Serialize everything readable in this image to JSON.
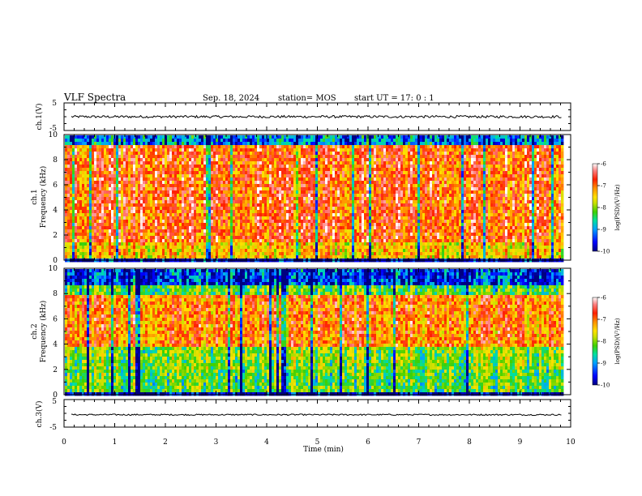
{
  "header": {
    "title": "VLF Spectra",
    "date": "Sep. 18, 2024",
    "station": "station= MOS",
    "start_ut": "start  UT =   17: 0  : 1"
  },
  "chart_data": [
    {
      "id": "ch1-waveform",
      "type": "line",
      "ylabel": "ch.1(V)",
      "ylim": [
        -5,
        5
      ],
      "y_ticks": [
        "5",
        "-5"
      ],
      "signal_level": 0,
      "xlim": [
        0,
        10
      ],
      "data_end_min": 9.82
    },
    {
      "id": "ch1-spectrogram",
      "type": "heatmap",
      "ylabel_channel": "ch.1",
      "ylabel": "Frequency (kHz)",
      "ylim": [
        0,
        10
      ],
      "y_ticks": [
        "0",
        "2",
        "4",
        "6",
        "8",
        "10"
      ],
      "xlim": [
        0,
        10
      ],
      "data_end_min": 9.82,
      "colorbar": {
        "label": "log(PSD)(V²/Hz)",
        "range": [
          -10,
          -6
        ],
        "ticks": [
          "-6",
          "-7",
          "-8",
          "-9",
          "-10"
        ]
      }
    },
    {
      "id": "ch2-spectrogram",
      "type": "heatmap",
      "ylabel_channel": "ch.2",
      "ylabel": "Frequency (kHz)",
      "ylim": [
        0,
        10
      ],
      "y_ticks": [
        "0",
        "2",
        "4",
        "6",
        "8",
        "10"
      ],
      "xlim": [
        0,
        10
      ],
      "data_end_min": 9.82,
      "colorbar": {
        "label": "log(PSD)(V²/Hz)",
        "range": [
          -10,
          -6
        ],
        "ticks": [
          "-6",
          "-7",
          "-8",
          "-9",
          "-10"
        ]
      }
    },
    {
      "id": "ch3-waveform",
      "type": "line",
      "ylabel": "ch.3(V)",
      "ylim": [
        -5,
        5
      ],
      "y_ticks": [
        "5",
        "-5"
      ],
      "signal_level": -0.5,
      "xlim": [
        0,
        10
      ],
      "data_end_min": 9.82
    }
  ],
  "x_axis": {
    "label": "Time (min)",
    "ticks": [
      "0",
      "1",
      "2",
      "3",
      "4",
      "5",
      "6",
      "7",
      "8",
      "9",
      "10"
    ]
  },
  "colors": {
    "axis": "#000000",
    "background": "#ffffff",
    "colormap": [
      "#000080",
      "#0000ff",
      "#00a0ff",
      "#00e0a0",
      "#40d000",
      "#c8e000",
      "#ffe000",
      "#ff9000",
      "#ff2000",
      "#ff8080",
      "#ffffff"
    ]
  }
}
